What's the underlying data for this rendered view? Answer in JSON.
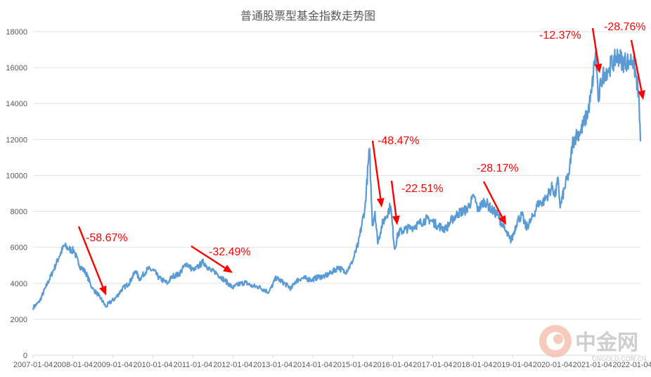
{
  "chart_data": {
    "type": "line",
    "title": "普通股票型基金指数走势图",
    "xlabel": "",
    "ylabel": "",
    "ylim": [
      0,
      18000
    ],
    "yticks": [
      0,
      2000,
      4000,
      6000,
      8000,
      10000,
      12000,
      14000,
      16000,
      18000
    ],
    "xticks": [
      "2007-01-04",
      "2008-01-04",
      "2009-01-04",
      "2010-01-04",
      "2011-01-04",
      "2012-01-04",
      "2013-01-04",
      "2014-01-04",
      "2015-01-04",
      "2016-01-04",
      "2017-01-04",
      "2018-01-04",
      "2019-01-04",
      "2020-01-04",
      "2021-01-04",
      "2022-01-04"
    ],
    "grid": true,
    "line_color": "#5b9bd5",
    "series": [
      {
        "x": [
          "2007-01-04",
          "2007-03-01",
          "2007-05-01",
          "2007-07-01",
          "2007-09-01",
          "2007-10-16",
          "2007-12-01",
          "2008-01-15",
          "2008-03-01",
          "2008-05-01",
          "2008-07-01",
          "2008-09-01",
          "2008-11-01",
          "2008-12-01",
          "2009-02-01",
          "2009-04-01",
          "2009-06-01",
          "2009-08-03",
          "2009-09-01",
          "2009-11-20",
          "2010-01-15",
          "2010-03-01",
          "2010-05-20",
          "2010-07-01",
          "2010-09-01",
          "2010-11-08",
          "2011-01-15",
          "2011-04-12",
          "2011-06-20",
          "2011-08-01",
          "2011-10-20",
          "2012-01-06",
          "2012-03-01",
          "2012-05-01",
          "2012-07-01",
          "2012-09-01",
          "2012-12-03",
          "2013-02-06",
          "2013-04-01",
          "2013-06-25",
          "2013-08-01",
          "2013-10-01",
          "2014-01-01",
          "2014-03-01",
          "2014-05-01",
          "2014-07-01",
          "2014-09-01",
          "2014-11-01",
          "2015-01-01",
          "2015-03-01",
          "2015-05-01",
          "2015-06-12",
          "2015-07-08",
          "2015-08-01",
          "2015-08-26",
          "2015-10-01",
          "2015-12-22",
          "2016-01-28",
          "2016-03-01",
          "2016-05-01",
          "2016-07-01",
          "2016-09-01",
          "2016-11-25",
          "2017-01-15",
          "2017-03-01",
          "2017-05-10",
          "2017-07-01",
          "2017-09-01",
          "2017-11-15",
          "2018-01-24",
          "2018-03-01",
          "2018-05-01",
          "2018-07-01",
          "2018-09-01",
          "2018-10-19",
          "2018-12-15",
          "2019-01-03",
          "2019-02-25",
          "2019-04-08",
          "2019-05-15",
          "2019-07-01",
          "2019-09-01",
          "2019-11-01",
          "2020-01-14",
          "2020-02-03",
          "2020-03-05",
          "2020-03-23",
          "2020-05-01",
          "2020-06-15",
          "2020-07-13",
          "2020-08-15",
          "2020-10-01",
          "2020-12-01",
          "2021-01-04",
          "2021-02-10",
          "2021-03-09",
          "2021-04-01",
          "2021-05-01",
          "2021-06-15",
          "2021-08-01",
          "2021-09-01",
          "2021-10-20",
          "2021-12-10",
          "2022-01-15",
          "2022-02-15",
          "2022-03-15",
          "2022-03-28"
        ],
        "y": [
          2650,
          2950,
          3800,
          4600,
          5500,
          6100,
          5900,
          5800,
          5000,
          4600,
          3700,
          3300,
          2700,
          2900,
          3200,
          3700,
          4000,
          4700,
          4200,
          4800,
          4700,
          4300,
          4000,
          4400,
          4500,
          5100,
          4700,
          5200,
          4700,
          4600,
          4200,
          3750,
          3950,
          4050,
          3850,
          3800,
          3500,
          4300,
          4100,
          3700,
          4100,
          4300,
          4200,
          4350,
          4400,
          4600,
          4900,
          4600,
          5100,
          6200,
          8200,
          11500,
          7200,
          8000,
          6200,
          7200,
          8300,
          5900,
          6800,
          7000,
          7100,
          7300,
          7600,
          7400,
          7200,
          7000,
          7500,
          7900,
          8100,
          8800,
          8100,
          8600,
          8100,
          7800,
          7100,
          6500,
          6400,
          7500,
          7800,
          7100,
          7500,
          8400,
          8600,
          9400,
          8800,
          9800,
          8200,
          9300,
          10200,
          11800,
          12200,
          12500,
          13500,
          14600,
          16900,
          14100,
          15200,
          15700,
          16000,
          16400,
          16700,
          16300,
          16400,
          16400,
          15600,
          14200,
          11900
        ]
      }
    ],
    "annotations": [
      "-58.67%",
      "-32.49%",
      "-48.47%",
      "-22.51%",
      "-28.17%",
      "-12.37%",
      "-28.76%"
    ],
    "watermark": {
      "brand": "中金网",
      "url": "CNGOLD.COM.CN"
    }
  }
}
